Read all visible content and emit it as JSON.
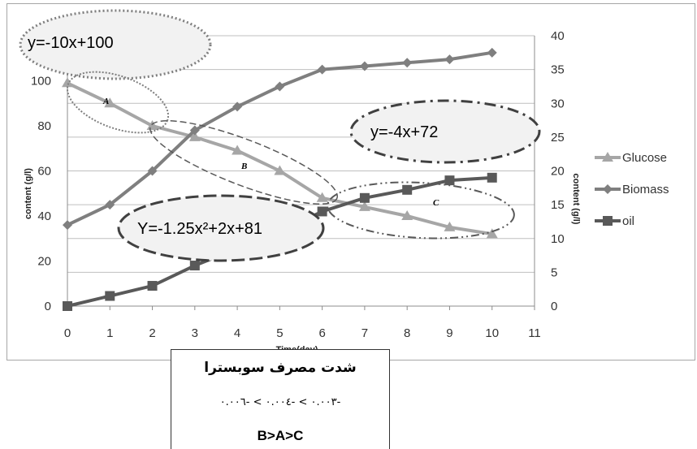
{
  "chart_data": {
    "type": "line",
    "x": [
      0,
      1,
      2,
      3,
      4,
      5,
      6,
      7,
      8,
      9,
      10
    ],
    "xlabel": "Time(day)",
    "ylabel_left": "content (g/l)",
    "ylabel_right": "content (g/l)",
    "xlim": [
      0,
      11
    ],
    "ylim_left": [
      0,
      120
    ],
    "ylim_right": [
      0,
      40
    ],
    "x_ticks": [
      "0",
      "1",
      "2",
      "3",
      "4",
      "5",
      "6",
      "7",
      "8",
      "9",
      "10",
      "11"
    ],
    "y_ticks_left": [
      "0",
      "20",
      "40",
      "60",
      "80",
      "100"
    ],
    "y_ticks_right": [
      "0",
      "5",
      "10",
      "15",
      "20",
      "25",
      "30",
      "35",
      "40"
    ],
    "grid": "horizontal",
    "legend_position": "right",
    "series": [
      {
        "name": "Glucose",
        "axis": "left",
        "color": "#a6a6a6",
        "marker": "triangle",
        "values": [
          99,
          90,
          80,
          75,
          69,
          60,
          48,
          44,
          40,
          35,
          32
        ]
      },
      {
        "name": "Biomass",
        "axis": "right",
        "color": "#7f7f7f",
        "marker": "diamond",
        "values": [
          12,
          15,
          20,
          26,
          29.5,
          32.5,
          35,
          35.5,
          36,
          36.5,
          37.5
        ]
      },
      {
        "name": "oil",
        "axis": "right",
        "color": "#595959",
        "marker": "square",
        "values": [
          0,
          1.5,
          3,
          6,
          8.5,
          11,
          14,
          16,
          17.2,
          18.6,
          19
        ]
      }
    ],
    "annotations": {
      "equation_a": "y=-10x+100",
      "equation_b": "y=-4x+72",
      "equation_c": "Y=-1.25x²+2x+81",
      "region_a": "A",
      "region_b": "B",
      "region_c": "C"
    }
  },
  "note": {
    "title": "شدت مصرف سوبسترا",
    "rates": "-۰.۰۰۳ > -۰.۰۰٤ > -۰.۰۰٦",
    "order": "B>A>C"
  }
}
